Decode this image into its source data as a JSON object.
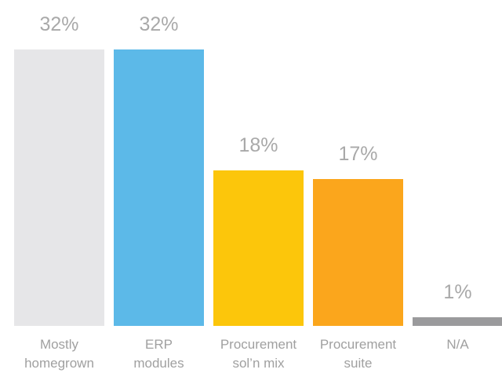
{
  "chart_data": {
    "type": "bar",
    "categories": [
      [
        "Mostly",
        "homegrown"
      ],
      [
        "ERP",
        "modules"
      ],
      [
        "Procurement",
        "sol’n mix"
      ],
      [
        "Procurement",
        "suite"
      ],
      [
        "N/A"
      ]
    ],
    "values": [
      32,
      32,
      18,
      17,
      1
    ],
    "value_labels": [
      "32%",
      "32%",
      "18%",
      "17%",
      "1%"
    ],
    "colors": [
      "#e6e6e8",
      "#5cb9e8",
      "#fcc60b",
      "#fba61c",
      "#9a9a9c"
    ],
    "ylim": [
      0,
      32
    ],
    "grid": false,
    "legend": "none"
  }
}
